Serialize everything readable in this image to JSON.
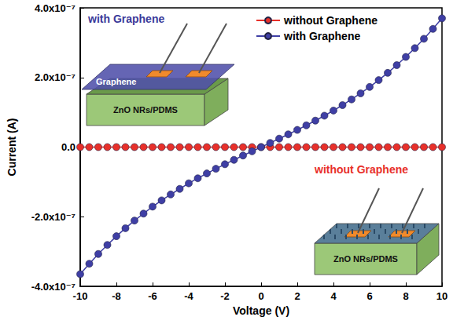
{
  "chart_data": {
    "type": "line",
    "x_label": "Voltage (V)",
    "y_label": "Current (A)",
    "x": [
      -10,
      -9.5,
      -9,
      -8.5,
      -8,
      -7.5,
      -7,
      -6.5,
      -6,
      -5.5,
      -5,
      -4.5,
      -4,
      -3.5,
      -3,
      -2.5,
      -2,
      -1.5,
      -1,
      -0.5,
      0,
      0.5,
      1,
      1.5,
      2,
      2.5,
      3,
      3.5,
      4,
      4.5,
      5,
      5.5,
      6,
      6.5,
      7,
      7.5,
      8,
      8.5,
      9,
      9.5,
      10
    ],
    "series": [
      {
        "name": "without Graphene",
        "color": "#e8302a",
        "marker": "circle",
        "values": [
          0,
          0,
          0,
          0,
          0,
          0,
          0,
          0,
          0,
          0,
          0,
          0,
          0,
          0,
          0,
          0,
          0,
          0,
          0,
          0,
          0,
          0,
          0,
          0,
          0,
          0,
          0,
          0,
          0,
          0,
          0,
          0,
          0,
          0,
          0,
          0,
          0,
          0,
          0,
          0,
          0
        ]
      },
      {
        "name": "with Graphene",
        "color": "#3f3fa5",
        "marker": "circle",
        "values": [
          -3.65e-07,
          -3.35e-07,
          -3.07e-07,
          -2.81e-07,
          -2.56e-07,
          -2.33e-07,
          -2.11e-07,
          -1.91e-07,
          -1.71e-07,
          -1.53e-07,
          -1.36e-07,
          -1.2e-07,
          -1.04e-07,
          -8.95e-08,
          -7.56e-08,
          -6.22e-08,
          -4.92e-08,
          -3.66e-08,
          -2.42e-08,
          -1.21e-08,
          0,
          1.21e-08,
          2.43e-08,
          3.67e-08,
          4.94e-08,
          6.25e-08,
          7.61e-08,
          9.02e-08,
          1.05e-07,
          1.206e-07,
          1.37e-07,
          1.544e-07,
          1.728e-07,
          1.925e-07,
          2.133e-07,
          2.355e-07,
          2.59e-07,
          2.843e-07,
          3.111e-07,
          3.396e-07,
          3.7e-07
        ]
      }
    ],
    "xlim": [
      -10,
      10
    ],
    "xticks": [
      -10,
      -8,
      -6,
      -4,
      -2,
      0,
      2,
      4,
      6,
      8,
      10
    ],
    "ylim": [
      -4e-07,
      4e-07
    ],
    "yticks": [
      {
        "value": -4e-07,
        "label": "-4.0x10⁻⁷"
      },
      {
        "value": -2e-07,
        "label": "-2.0x10⁻⁷"
      },
      {
        "value": 0,
        "label": "0.0"
      },
      {
        "value": 2e-07,
        "label": "2.0x10⁻⁷"
      },
      {
        "value": 4e-07,
        "label": "4.0x10⁻⁷"
      }
    ],
    "grid": false,
    "legend": "upper right",
    "annotations": [
      {
        "title": "with Graphene",
        "layers": [
          "Graphene",
          "ZnO NRs/PDMS"
        ]
      },
      {
        "title": "without Graphene",
        "layers": [
          "ZnO NRs/PDMS"
        ]
      }
    ]
  }
}
